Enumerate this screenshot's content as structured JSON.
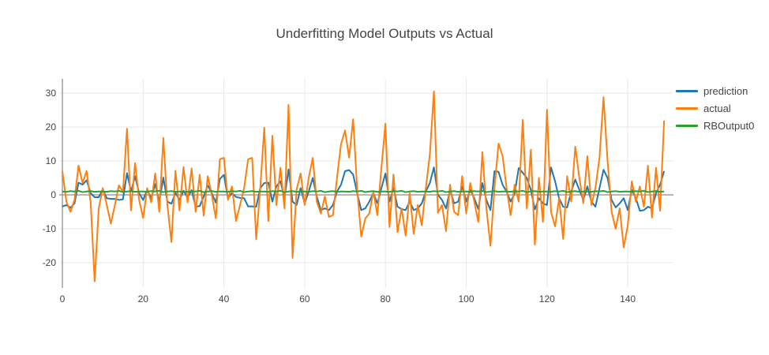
{
  "chart_data": {
    "type": "line",
    "title": "Underfitting Model Outputs vs Actual",
    "xlabel": "",
    "ylabel": "",
    "xlim": [
      -0.8,
      151.2
    ],
    "ylim": [
      -27.4,
      34.2
    ],
    "xticks": [
      0,
      20,
      40,
      60,
      80,
      100,
      120,
      140
    ],
    "yticks": [
      -20,
      -10,
      0,
      10,
      20,
      30
    ],
    "grid": true,
    "zerolines": true,
    "legend_position": "right",
    "x_start": 0,
    "x_step": 1,
    "n_points": 150,
    "series": [
      {
        "name": "prediction",
        "color": "#1f77b4",
        "values": [
          -3.4,
          -3.0,
          -3.8,
          -2.5,
          3.6,
          3.0,
          4.3,
          0.5,
          -0.7,
          -0.7,
          1.6,
          -1.0,
          -1.2,
          -1.2,
          -1.5,
          -1.3,
          6.4,
          1.0,
          5.5,
          0.5,
          -1.5,
          1.5,
          -1.0,
          3.2,
          -2.0,
          5.1,
          -2.0,
          -2.6,
          0.6,
          -1.5,
          1.2,
          -0.8,
          1.4,
          -3.5,
          -3.3,
          -0.5,
          2.8,
          0.5,
          -2.3,
          4.7,
          5.9,
          -1.0,
          0.5,
          -0.6,
          -0.9,
          -1.0,
          -3.4,
          -3.4,
          -3.5,
          2.0,
          3.5,
          3.6,
          -2.0,
          2.5,
          4.0,
          -1.0,
          7.5,
          -2.0,
          -3.0,
          2.0,
          -2.5,
          1.0,
          5.0,
          -0.5,
          -4.5,
          -4.0,
          -4.5,
          -3.0,
          1.0,
          3.0,
          7.0,
          7.3,
          6.0,
          0.5,
          -4.5,
          -4.0,
          -2.0,
          0.5,
          -2.5,
          2.0,
          6.3,
          -2.0,
          2.0,
          -3.5,
          -4.2,
          -4.5,
          -2.0,
          -4.5,
          -4.0,
          -2.5,
          1.0,
          3.5,
          8.1,
          0.0,
          -1.5,
          -4.0,
          1.5,
          -2.5,
          -2.0,
          2.5,
          -2.0,
          1.5,
          -1.0,
          -4.2,
          3.5,
          -1.5,
          -4.5,
          7.0,
          6.8,
          3.0,
          1.0,
          -2.0,
          0.5,
          7.9,
          6.5,
          5.0,
          1.5,
          -4.3,
          -1.0,
          -2.5,
          -3.0,
          8.1,
          4.0,
          -1.0,
          -3.5,
          -3.7,
          1.0,
          4.5,
          1.5,
          -1.5,
          2.5,
          -2.0,
          -3.5,
          2.0,
          7.4,
          5.0,
          -1.5,
          -3.7,
          -2.5,
          -1.0,
          -4.5,
          1.5,
          -1.0,
          -4.7,
          -4.5,
          -3.5,
          -4.0,
          0.5,
          3.0,
          7.0
        ]
      },
      {
        "name": "actual",
        "color": "#ff7f0e",
        "values": [
          7.0,
          -2.0,
          -5.0,
          -1.5,
          8.6,
          3.5,
          7.0,
          -2.2,
          -25.5,
          -4.0,
          2.0,
          -3.0,
          -8.5,
          -3.0,
          2.8,
          0.9,
          19.5,
          -4.6,
          9.4,
          -1.5,
          -6.8,
          2.0,
          -2.2,
          6.3,
          -5.0,
          16.8,
          -3.0,
          -13.9,
          7.1,
          -4.6,
          8.2,
          -2.2,
          7.8,
          -5.0,
          5.9,
          -6.1,
          5.5,
          0.0,
          -6.9,
          10.5,
          10.9,
          -1.5,
          2.5,
          -7.7,
          -3.0,
          2.0,
          10.5,
          10.9,
          -13.1,
          2.0,
          19.8,
          -7.7,
          17.4,
          -3.0,
          8.0,
          -4.0,
          26.5,
          -18.6,
          1.6,
          6.3,
          -3.0,
          5.0,
          10.9,
          -2.0,
          -5.5,
          -0.5,
          -6.5,
          -6.0,
          5.0,
          15.0,
          19.0,
          11.0,
          22.3,
          1.6,
          -12.3,
          -7.0,
          -5.5,
          1.0,
          -6.0,
          8.0,
          21.0,
          -9.5,
          6.0,
          -11.0,
          -4.0,
          -12.0,
          0.5,
          -11.5,
          -3.0,
          -9.0,
          2.0,
          12.0,
          30.5,
          -5.3,
          -3.0,
          -10.7,
          3.0,
          -5.0,
          -6.0,
          5.5,
          -5.5,
          3.5,
          -2.0,
          -8.0,
          12.6,
          -4.0,
          -15.0,
          2.0,
          15.1,
          11.5,
          2.0,
          -6.0,
          3.0,
          -2.0,
          22.1,
          -4.0,
          13.3,
          -14.7,
          5.0,
          -8.0,
          25.1,
          -5.0,
          -9.3,
          -1.0,
          -13.0,
          5.5,
          -2.0,
          14.2,
          5.1,
          -2.5,
          11.4,
          -3.0,
          2.0,
          11.0,
          28.8,
          10.0,
          -5.0,
          -10.0,
          -4.0,
          -15.5,
          -9.0,
          4.0,
          -2.0,
          2.5,
          -3.5,
          8.6,
          -6.7,
          8.0,
          -4.7,
          21.9
        ]
      },
      {
        "name": "RBOutput0",
        "color": "#2ca02c",
        "values": [
          1.0,
          0.9,
          1.1,
          1.0,
          1.2,
          0.8,
          1.0,
          1.1,
          0.9,
          1.0,
          1.0,
          0.9,
          1.1,
          1.0,
          1.2,
          0.8,
          1.0,
          1.1,
          0.9,
          1.0,
          1.0,
          0.9,
          1.1,
          1.0,
          1.2,
          0.8,
          1.0,
          1.1,
          0.9,
          1.0,
          1.0,
          0.9,
          1.1,
          1.0,
          1.2,
          0.8,
          1.0,
          1.1,
          0.9,
          1.0,
          1.0,
          0.9,
          1.1,
          1.0,
          1.2,
          0.8,
          1.0,
          1.1,
          0.9,
          1.0,
          1.0,
          0.9,
          1.1,
          1.0,
          1.2,
          0.8,
          1.0,
          1.1,
          0.9,
          1.0,
          1.0,
          0.9,
          1.1,
          1.0,
          1.2,
          0.8,
          1.0,
          1.1,
          0.9,
          1.0,
          1.0,
          0.9,
          1.1,
          1.0,
          1.2,
          0.8,
          1.0,
          1.1,
          0.9,
          1.0,
          1.0,
          0.9,
          1.1,
          1.0,
          1.2,
          0.8,
          1.0,
          1.1,
          0.9,
          1.0,
          1.0,
          0.9,
          1.1,
          1.0,
          1.2,
          0.8,
          1.0,
          1.1,
          0.9,
          1.0,
          1.0,
          0.9,
          1.1,
          1.0,
          1.2,
          0.8,
          1.0,
          1.1,
          0.9,
          1.0,
          1.0,
          0.9,
          1.1,
          1.0,
          1.2,
          0.8,
          1.0,
          1.1,
          0.9,
          1.0,
          1.0,
          0.9,
          1.1,
          1.0,
          1.2,
          0.8,
          1.0,
          1.1,
          0.9,
          1.0,
          1.0,
          0.9,
          1.1,
          1.0,
          1.2,
          0.8,
          1.0,
          1.1,
          0.9,
          1.0,
          1.0,
          0.9,
          1.1,
          1.0,
          1.2,
          0.8,
          1.0,
          1.1,
          0.9,
          1.0
        ]
      }
    ],
    "style": {
      "background": "#ffffff",
      "grid_color": "#e8e8e8",
      "zeroline_color": "#8c8c8c",
      "text_color": "#444444",
      "line_width": 2
    }
  }
}
